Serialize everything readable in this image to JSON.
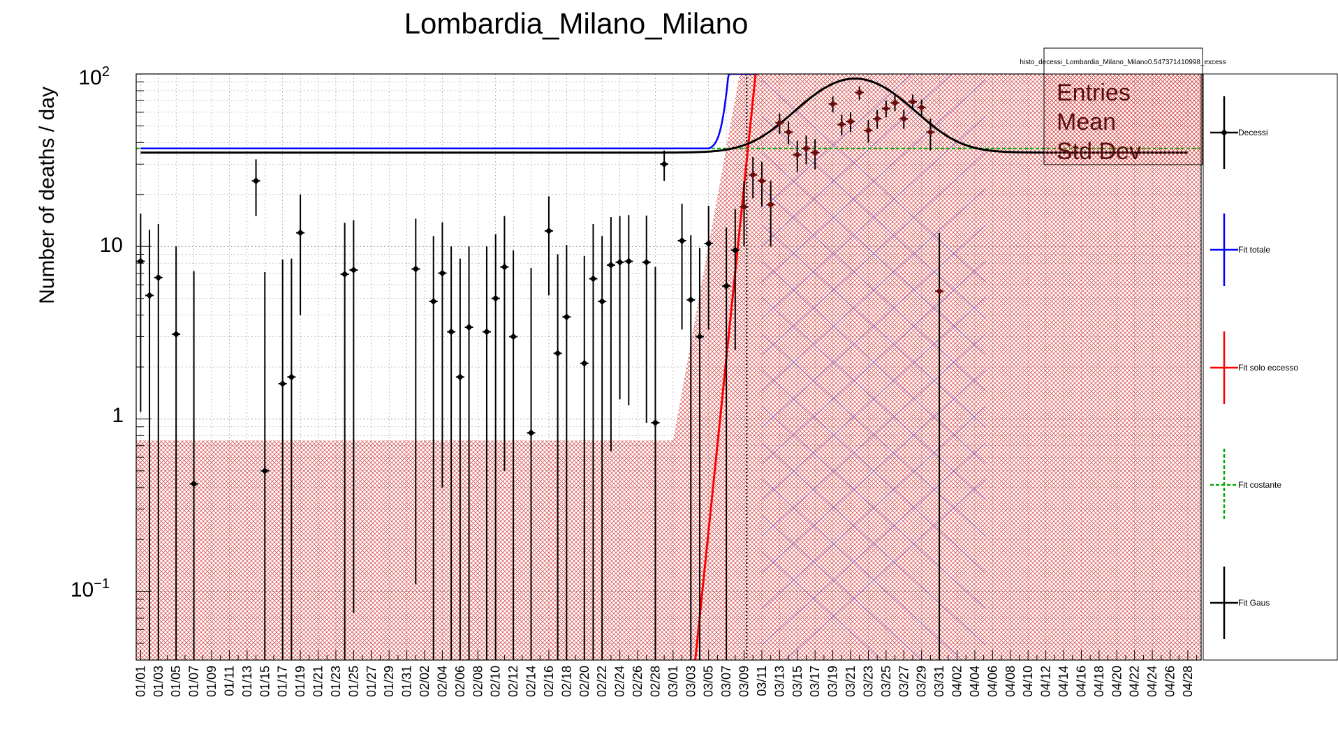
{
  "chart_data": {
    "type": "scatter",
    "title": "Lombardia_Milano_Milano",
    "ylabel": "Number of deaths / day",
    "xlabel": "",
    "y_scale": "log",
    "ylim": [
      0.04,
      100
    ],
    "ytick_labels": {
      "p2": "2",
      "ten": "10",
      "one": "1",
      "m1": "−1"
    },
    "grid": true,
    "x_categories": [
      "01/01",
      "01/03",
      "01/05",
      "01/07",
      "01/09",
      "01/11",
      "01/13",
      "01/15",
      "01/17",
      "01/19",
      "01/21",
      "01/23",
      "01/25",
      "01/27",
      "01/29",
      "01/31",
      "02/02",
      "02/04",
      "02/06",
      "02/08",
      "02/10",
      "02/12",
      "02/14",
      "02/16",
      "02/18",
      "02/20",
      "02/22",
      "02/24",
      "02/26",
      "02/28",
      "03/01",
      "03/03",
      "03/05",
      "03/07",
      "03/09",
      "03/11",
      "03/13",
      "03/15",
      "03/17",
      "03/19",
      "03/21",
      "03/23",
      "03/25",
      "03/27",
      "03/29",
      "03/31",
      "04/02",
      "04/04",
      "04/06",
      "04/08",
      "04/10",
      "04/12",
      "04/14",
      "04/16",
      "04/18",
      "04/20",
      "04/22",
      "04/24",
      "04/26",
      "04/28"
    ],
    "x_day_range": [
      0,
      119
    ],
    "series": [
      {
        "name": "Decessi",
        "color": "#000000",
        "points": [
          {
            "day": 0,
            "y": 8.2,
            "lo": 1.1,
            "hi": 15.5
          },
          {
            "day": 1,
            "y": 5.2,
            "lo": 0.04,
            "hi": 12.5
          },
          {
            "day": 2,
            "y": 6.6,
            "lo": 0.04,
            "hi": 13.5
          },
          {
            "day": 4,
            "y": 3.1,
            "lo": 0.04,
            "hi": 10.0
          },
          {
            "day": 6,
            "y": 0.42,
            "lo": 0.04,
            "hi": 7.2
          },
          {
            "day": 13,
            "y": 24,
            "lo": 15,
            "hi": 32
          },
          {
            "day": 14,
            "y": 0.5,
            "lo": 0.04,
            "hi": 7.1
          },
          {
            "day": 16,
            "y": 1.6,
            "lo": 0.04,
            "hi": 8.4
          },
          {
            "day": 17,
            "y": 1.75,
            "lo": 0.04,
            "hi": 8.5
          },
          {
            "day": 18,
            "y": 12,
            "lo": 4,
            "hi": 20
          },
          {
            "day": 23,
            "y": 6.9,
            "lo": 0.04,
            "hi": 13.7
          },
          {
            "day": 24,
            "y": 7.3,
            "lo": 0.075,
            "hi": 14.2
          },
          {
            "day": 31,
            "y": 7.4,
            "lo": 0.11,
            "hi": 14.5
          },
          {
            "day": 33,
            "y": 4.8,
            "lo": 0.04,
            "hi": 11.5
          },
          {
            "day": 34,
            "y": 7.0,
            "lo": 0.4,
            "hi": 13.8
          },
          {
            "day": 35,
            "y": 3.2,
            "lo": 0.04,
            "hi": 10.0
          },
          {
            "day": 36,
            "y": 1.75,
            "lo": 0.04,
            "hi": 8.5
          },
          {
            "day": 37,
            "y": 3.4,
            "lo": 0.04,
            "hi": 10.0
          },
          {
            "day": 39,
            "y": 3.2,
            "lo": 0.04,
            "hi": 10.0
          },
          {
            "day": 40,
            "y": 5.0,
            "lo": 0.04,
            "hi": 11.8
          },
          {
            "day": 41,
            "y": 7.6,
            "lo": 0.5,
            "hi": 15.0
          },
          {
            "day": 42,
            "y": 3.0,
            "lo": 0.04,
            "hi": 9.5
          },
          {
            "day": 44,
            "y": 0.83,
            "lo": 0.04,
            "hi": 7.5
          },
          {
            "day": 46,
            "y": 12.3,
            "lo": 5.2,
            "hi": 19.5
          },
          {
            "day": 47,
            "y": 2.4,
            "lo": 0.04,
            "hi": 9.0
          },
          {
            "day": 48,
            "y": 3.9,
            "lo": 0.04,
            "hi": 10.2
          },
          {
            "day": 50,
            "y": 2.1,
            "lo": 0.04,
            "hi": 8.8
          },
          {
            "day": 51,
            "y": 6.5,
            "lo": 0.04,
            "hi": 13.5
          },
          {
            "day": 52,
            "y": 4.8,
            "lo": 0.04,
            "hi": 11.5
          },
          {
            "day": 53,
            "y": 7.8,
            "lo": 0.65,
            "hi": 14.8
          },
          {
            "day": 54,
            "y": 8.1,
            "lo": 1.3,
            "hi": 15.0
          },
          {
            "day": 55,
            "y": 8.2,
            "lo": 1.2,
            "hi": 15.2
          },
          {
            "day": 57,
            "y": 8.1,
            "lo": 0.95,
            "hi": 15.1
          },
          {
            "day": 58,
            "y": 0.95,
            "lo": 0.04,
            "hi": 7.6
          },
          {
            "day": 59,
            "y": 30,
            "lo": 24,
            "hi": 36
          },
          {
            "day": 61,
            "y": 10.8,
            "lo": 3.3,
            "hi": 17.7
          },
          {
            "day": 62,
            "y": 4.9,
            "lo": 0.04,
            "hi": 11.6
          },
          {
            "day": 63,
            "y": 3.0,
            "lo": 0.04,
            "hi": 9.8
          },
          {
            "day": 64,
            "y": 10.4,
            "lo": 3.3,
            "hi": 17.2
          },
          {
            "day": 66,
            "y": 5.9,
            "lo": 0.04,
            "hi": 12.9
          },
          {
            "day": 67,
            "y": 9.5,
            "lo": 2.5,
            "hi": 16.5
          },
          {
            "day": 68,
            "y": 17,
            "lo": 10,
            "hi": 24
          },
          {
            "day": 69,
            "y": 26,
            "lo": 19,
            "hi": 33
          },
          {
            "day": 70,
            "y": 24,
            "lo": 17,
            "hi": 31
          },
          {
            "day": 71,
            "y": 17.5,
            "lo": 10,
            "hi": 24
          },
          {
            "day": 72,
            "y": 52,
            "lo": 45,
            "hi": 59
          },
          {
            "day": 73,
            "y": 46,
            "lo": 39,
            "hi": 53
          },
          {
            "day": 74,
            "y": 34,
            "lo": 27,
            "hi": 41
          },
          {
            "day": 75,
            "y": 37,
            "lo": 30,
            "hi": 44
          },
          {
            "day": 76,
            "y": 35,
            "lo": 28,
            "hi": 42
          },
          {
            "day": 78,
            "y": 67,
            "lo": 60,
            "hi": 74
          },
          {
            "day": 79,
            "y": 51,
            "lo": 44,
            "hi": 58
          },
          {
            "day": 80,
            "y": 53,
            "lo": 46,
            "hi": 60
          },
          {
            "day": 81,
            "y": 78,
            "lo": 71,
            "hi": 85
          },
          {
            "day": 82,
            "y": 47,
            "lo": 40,
            "hi": 54
          },
          {
            "day": 83,
            "y": 55,
            "lo": 48,
            "hi": 62
          },
          {
            "day": 84,
            "y": 63,
            "lo": 56,
            "hi": 70
          },
          {
            "day": 85,
            "y": 68,
            "lo": 61,
            "hi": 75
          },
          {
            "day": 86,
            "y": 55,
            "lo": 48,
            "hi": 62
          },
          {
            "day": 87,
            "y": 69,
            "lo": 62,
            "hi": 76
          },
          {
            "day": 88,
            "y": 64,
            "lo": 57,
            "hi": 71
          },
          {
            "day": 89,
            "y": 46,
            "lo": 36,
            "hi": 55
          },
          {
            "day": 90,
            "y": 5.5,
            "lo": 0.04,
            "hi": 12
          }
        ]
      },
      {
        "name": "Fit totale",
        "color": "#0000ff",
        "constant": 37,
        "exp_start_day": 64,
        "reaches_top_day": 69.7
      },
      {
        "name": "Fit solo eccesso",
        "color": "#ff0000",
        "exp_from": {
          "day": 62.5,
          "y": 0.04
        },
        "exp_to": {
          "day": 69.3,
          "y": 100
        }
      },
      {
        "name": "Fit costante",
        "color": "#00aa00",
        "constant": 37
      },
      {
        "name": "Fit Gaus",
        "color": "#000000",
        "baseline": 35,
        "amplitude": 59,
        "mean_day": 80.5,
        "sigma_day": 5.3
      }
    ],
    "markers": {
      "vertical_dotted_day": 68.3
    },
    "stats_box": {
      "name": "histo_decessi_Lombardia_Milano_Milano0.547371410998_excess",
      "rows": [
        "Entries",
        "Mean",
        "Std Dev"
      ]
    }
  }
}
